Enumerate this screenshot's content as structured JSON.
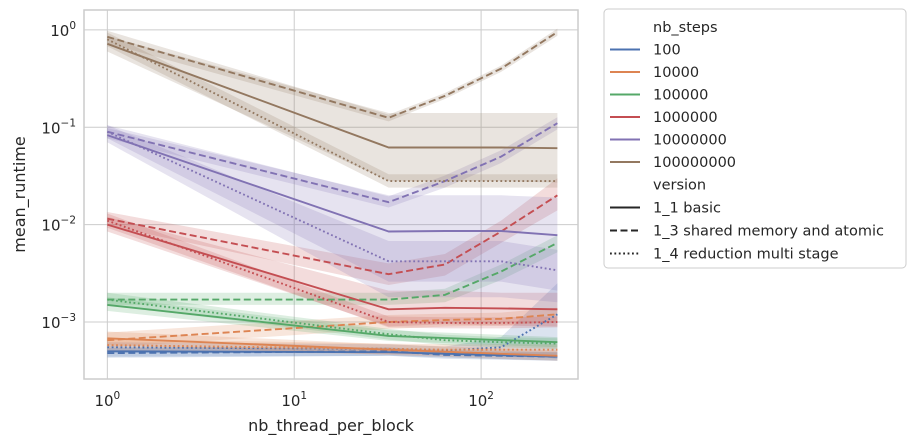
{
  "chart_data": {
    "type": "line",
    "xlabel": "nb_thread_per_block",
    "ylabel": "mean_runtime",
    "x_scale": "log",
    "y_scale": "log",
    "xlim": [
      0.75,
      330
    ],
    "ylim": [
      0.00026,
      1.6
    ],
    "x_ticks": [
      {
        "value": 1,
        "base": "10",
        "exp": "0"
      },
      {
        "value": 10,
        "base": "10",
        "exp": "1"
      },
      {
        "value": 100,
        "base": "10",
        "exp": "2"
      }
    ],
    "y_ticks": [
      {
        "value": 0.001,
        "base": "10",
        "exp": "−3"
      },
      {
        "value": 0.01,
        "base": "10",
        "exp": "−2"
      },
      {
        "value": 0.1,
        "base": "10",
        "exp": "−1"
      },
      {
        "value": 1,
        "base": "10",
        "exp": "0"
      }
    ],
    "grid": true,
    "legend_position": "outside-right",
    "legend": {
      "hue_title": "nb_steps",
      "style_title": "version",
      "hue_entries": [
        {
          "label": "100",
          "color": "#4c72b0"
        },
        {
          "label": "10000",
          "color": "#dd8452"
        },
        {
          "label": "100000",
          "color": "#55a868"
        },
        {
          "label": "1000000",
          "color": "#c44e52"
        },
        {
          "label": "10000000",
          "color": "#8172b3"
        },
        {
          "label": "100000000",
          "color": "#937860"
        }
      ],
      "style_entries": [
        {
          "label": "1_1 basic",
          "dash": "solid"
        },
        {
          "label": "1_3 shared memory and atomic",
          "dash": "dashed"
        },
        {
          "label": "1_4 reduction multi stage",
          "dash": "dotted"
        }
      ]
    },
    "series": [
      {
        "hue": "100",
        "version": "1_1 basic",
        "x": [
          1,
          32,
          256
        ],
        "y": [
          0.0005,
          0.00049,
          0.00044
        ],
        "ci_low": [
          0.00044,
          0.00045,
          0.0004
        ],
        "ci_high": [
          0.00056,
          0.00054,
          0.00049
        ]
      },
      {
        "hue": "100",
        "version": "1_3 shared memory and atomic",
        "x": [
          1,
          32,
          64,
          128,
          256
        ],
        "y": [
          0.00048,
          0.0005,
          0.00046,
          0.00045,
          0.00044
        ],
        "ci_low": [
          0.00043,
          0.00045,
          0.00042,
          0.00041,
          0.0004
        ],
        "ci_high": [
          0.00054,
          0.00055,
          0.0005,
          0.00049,
          0.00049
        ]
      },
      {
        "hue": "100",
        "version": "1_4 reduction multi stage",
        "x": [
          1,
          32,
          64,
          128,
          256
        ],
        "y": [
          0.00055,
          0.00053,
          0.00051,
          0.00055,
          0.0012
        ],
        "ci_low": [
          0.00049,
          0.00048,
          0.00046,
          0.00049,
          0.00042
        ],
        "ci_high": [
          0.00062,
          0.00059,
          0.00056,
          0.0007,
          0.0025
        ]
      },
      {
        "hue": "10000",
        "version": "1_1 basic",
        "x": [
          1,
          32,
          256
        ],
        "y": [
          0.00068,
          0.00052,
          0.00045
        ],
        "ci_low": [
          0.00058,
          0.00046,
          0.0004
        ],
        "ci_high": [
          0.0008,
          0.00059,
          0.00051
        ]
      },
      {
        "hue": "10000",
        "version": "1_3 shared memory and atomic",
        "x": [
          1,
          32,
          64,
          128,
          256
        ],
        "y": [
          0.00065,
          0.001,
          0.00105,
          0.00108,
          0.0012
        ],
        "ci_low": [
          0.00055,
          0.00085,
          0.0009,
          0.00092,
          0.001
        ],
        "ci_high": [
          0.00078,
          0.00118,
          0.00122,
          0.00125,
          0.0014
        ]
      },
      {
        "hue": "10000",
        "version": "1_4 reduction multi stage",
        "x": [
          1,
          32,
          64,
          128,
          256
        ],
        "y": [
          0.00058,
          0.00053,
          0.00052,
          0.00052,
          0.00052
        ],
        "ci_low": [
          0.0005,
          0.00047,
          0.00046,
          0.00046,
          0.00046
        ],
        "ci_high": [
          0.00067,
          0.0006,
          0.00059,
          0.00059,
          0.00059
        ]
      },
      {
        "hue": "100000",
        "version": "1_1 basic",
        "x": [
          1,
          32,
          256
        ],
        "y": [
          0.0015,
          0.00072,
          0.00062
        ],
        "ci_low": [
          0.0013,
          0.00064,
          0.00055
        ],
        "ci_high": [
          0.0018,
          0.00082,
          0.0007
        ]
      },
      {
        "hue": "100000",
        "version": "1_3 shared memory and atomic",
        "x": [
          1,
          32,
          64,
          128,
          256
        ],
        "y": [
          0.0017,
          0.0017,
          0.0019,
          0.0033,
          0.0065
        ],
        "ci_low": [
          0.0015,
          0.0015,
          0.0016,
          0.0027,
          0.0052
        ],
        "ci_high": [
          0.002,
          0.002,
          0.0022,
          0.0039,
          0.0078
        ]
      },
      {
        "hue": "100000",
        "version": "1_4 reduction multi stage",
        "x": [
          1,
          32,
          64,
          128,
          256
        ],
        "y": [
          0.0017,
          0.00075,
          0.00065,
          0.00062,
          0.0006
        ],
        "ci_low": [
          0.0015,
          0.00066,
          0.00058,
          0.00055,
          0.00053
        ],
        "ci_high": [
          0.002,
          0.00085,
          0.00074,
          0.0007,
          0.00068
        ]
      },
      {
        "hue": "1000000",
        "version": "1_1 basic",
        "x": [
          1,
          32,
          64,
          128,
          256
        ],
        "y": [
          0.01,
          0.00135,
          0.0014,
          0.00138,
          0.00135
        ],
        "ci_low": [
          0.0085,
          0.0009,
          0.00095,
          0.00092,
          0.0009
        ],
        "ci_high": [
          0.012,
          0.0021,
          0.0021,
          0.002,
          0.002
        ]
      },
      {
        "hue": "1000000",
        "version": "1_3 shared memory and atomic",
        "x": [
          1,
          32,
          64,
          128,
          256
        ],
        "y": [
          0.0115,
          0.0031,
          0.0039,
          0.0085,
          0.02
        ],
        "ci_low": [
          0.0098,
          0.0024,
          0.003,
          0.0065,
          0.014
        ],
        "ci_high": [
          0.0135,
          0.004,
          0.005,
          0.011,
          0.03
        ]
      },
      {
        "hue": "1000000",
        "version": "1_4 reduction multi stage",
        "x": [
          1,
          32,
          64,
          128,
          256
        ],
        "y": [
          0.011,
          0.001,
          0.00098,
          0.00098,
          0.001
        ],
        "ci_low": [
          0.0093,
          0.00088,
          0.00086,
          0.00086,
          0.00088
        ],
        "ci_high": [
          0.013,
          0.00114,
          0.00112,
          0.00112,
          0.00114
        ]
      },
      {
        "hue": "10000000",
        "version": "1_1 basic",
        "x": [
          1,
          32,
          64,
          128,
          256
        ],
        "y": [
          0.083,
          0.0085,
          0.0086,
          0.0086,
          0.0078
        ],
        "ci_low": [
          0.07,
          0.0018,
          0.0018,
          0.0018,
          0.0016
        ],
        "ci_high": [
          0.098,
          0.02,
          0.02,
          0.02,
          0.019
        ]
      },
      {
        "hue": "10000000",
        "version": "1_3 shared memory and atomic",
        "x": [
          1,
          32,
          64,
          128,
          256
        ],
        "y": [
          0.09,
          0.017,
          0.028,
          0.05,
          0.11
        ],
        "ci_low": [
          0.077,
          0.015,
          0.024,
          0.043,
          0.095
        ],
        "ci_high": [
          0.105,
          0.0195,
          0.032,
          0.058,
          0.127
        ]
      },
      {
        "hue": "10000000",
        "version": "1_4 reduction multi stage",
        "x": [
          1,
          32,
          64,
          128,
          256
        ],
        "y": [
          0.09,
          0.0042,
          0.0042,
          0.0042,
          0.0034
        ],
        "ci_low": [
          0.077,
          0.0026,
          0.0026,
          0.0026,
          0.0021
        ],
        "ci_high": [
          0.105,
          0.0068,
          0.0068,
          0.0068,
          0.0055
        ]
      },
      {
        "hue": "100000000",
        "version": "1_1 basic",
        "x": [
          1,
          32,
          64,
          128,
          256
        ],
        "y": [
          0.72,
          0.062,
          0.062,
          0.062,
          0.061
        ],
        "ci_low": [
          0.6,
          0.028,
          0.028,
          0.028,
          0.027
        ],
        "ci_high": [
          0.86,
          0.14,
          0.14,
          0.14,
          0.14
        ]
      },
      {
        "hue": "100000000",
        "version": "1_3 shared memory and atomic",
        "x": [
          1,
          32,
          64,
          128,
          256
        ],
        "y": [
          0.85,
          0.125,
          0.21,
          0.4,
          0.95
        ],
        "ci_low": [
          0.73,
          0.115,
          0.195,
          0.37,
          0.87
        ],
        "ci_high": [
          0.98,
          0.135,
          0.225,
          0.43,
          1.03
        ]
      },
      {
        "hue": "100000000",
        "version": "1_4 reduction multi stage",
        "x": [
          1,
          32,
          64,
          128,
          256
        ],
        "y": [
          0.8,
          0.028,
          0.028,
          0.028,
          0.028
        ],
        "ci_low": [
          0.68,
          0.024,
          0.024,
          0.024,
          0.024
        ],
        "ci_high": [
          0.94,
          0.033,
          0.033,
          0.033,
          0.033
        ]
      }
    ]
  }
}
